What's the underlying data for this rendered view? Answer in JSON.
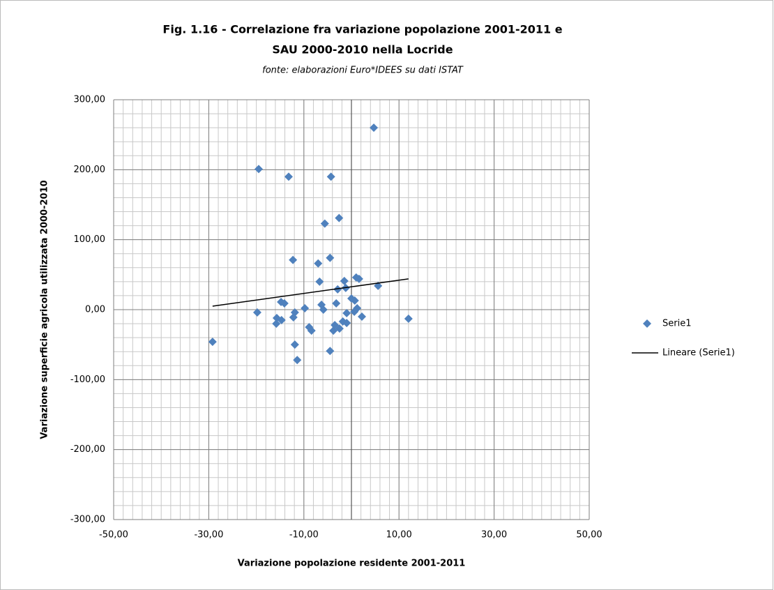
{
  "chart_data": {
    "type": "scatter",
    "title": "Fig. 1.16 -  Correlazione fra variazione popolazione 2001-2011 e",
    "title_line2": "SAU 2000-2010 nella Locride",
    "subtitle": "fonte: elaborazioni Euro*IDEES su dati ISTAT",
    "x_label": "Variazione popolazione  residente 2001-2011",
    "y_label": "Variazione superficie agricola  utilizzata  2000-2010",
    "xlim": [
      -50,
      50
    ],
    "ylim": [
      -300,
      300
    ],
    "xticks": [
      {
        "value": -50,
        "label": "-50,00"
      },
      {
        "value": -30,
        "label": "-30,00"
      },
      {
        "value": -10,
        "label": "-10,00"
      },
      {
        "value": 10,
        "label": "10,00"
      },
      {
        "value": 30,
        "label": "30,00"
      },
      {
        "value": 50,
        "label": "50,00"
      }
    ],
    "yticks": [
      {
        "value": -300,
        "label": "-300,00"
      },
      {
        "value": -200,
        "label": "-200,00"
      },
      {
        "value": -100,
        "label": "-100,00"
      },
      {
        "value": 0,
        "label": "0,00"
      },
      {
        "value": 100,
        "label": "100,00"
      },
      {
        "value": 200,
        "label": "200,00"
      },
      {
        "value": 300,
        "label": "300,00"
      }
    ],
    "grid": true,
    "x_minor_step": 2,
    "y_minor_step": 20,
    "legend": "right",
    "series": [
      {
        "name": "Serie1",
        "color": "#4f81bd",
        "x": [
          -29.2,
          -19.8,
          -19.5,
          -13.2,
          -4.3,
          4.7,
          -2.6,
          -5.6,
          -12.3,
          -4.5,
          -7.0,
          -6.7,
          -14.8,
          -14.1,
          -15.8,
          -15.7,
          -14.7,
          -11.9,
          -12.2,
          -11.9,
          -11.4,
          -9.8,
          -8.9,
          -8.4,
          -6.3,
          -5.9,
          -4.5,
          -3.8,
          -3.5,
          -3.2,
          -2.9,
          -2.5,
          -1.8,
          -1.5,
          -1.2,
          -1.0,
          -1.0,
          0,
          0.7,
          0.6,
          1.2,
          1.0,
          1.6,
          2.2,
          5.6,
          12.0
        ],
        "values": [
          -46,
          -4,
          201,
          190,
          190,
          260,
          131,
          123,
          71,
          74,
          66,
          40,
          11,
          9,
          -20,
          -12,
          -15,
          -4,
          -11,
          -50,
          -72,
          2,
          -25,
          -30,
          7,
          0,
          -59,
          -30,
          -22,
          9,
          29,
          -27,
          -17,
          41,
          31,
          -19,
          -5,
          16,
          13,
          -3,
          2,
          46,
          44,
          -10,
          34,
          -13
        ]
      }
    ],
    "trendline": {
      "name": "Lineare (Serie1)",
      "color": "#000000",
      "x": [
        -29.2,
        12.0
      ],
      "values": [
        5,
        44
      ]
    }
  }
}
